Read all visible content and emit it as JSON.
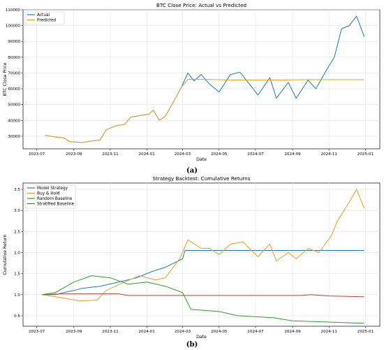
{
  "chart_data": [
    {
      "type": "line",
      "panel_label": "(a)",
      "title": "BTC Close Price: Actual vs Predicted",
      "xlabel": "Date",
      "ylabel": "BTC Close Price",
      "x_ticks": [
        "2023-07",
        "2023-09",
        "2023-11",
        "2024-01",
        "2024-03",
        "2024-05",
        "2024-07",
        "2024-09",
        "2024-11",
        "2025-01"
      ],
      "y_ticks": [
        30000,
        40000,
        50000,
        60000,
        70000,
        80000,
        90000,
        100000,
        110000
      ],
      "ylim": [
        22000,
        110000
      ],
      "xlim": [
        "2023-06-08",
        "2025-01-25"
      ],
      "grid": true,
      "legend": "top-left",
      "series": [
        {
          "name": "Actual",
          "color": "#1f77b4",
          "points": [
            [
              "2023-07-15",
              30500
            ],
            [
              "2023-08-01",
              29500
            ],
            [
              "2023-08-15",
              29000
            ],
            [
              "2023-08-25",
              26500
            ],
            [
              "2023-09-15",
              26000
            ],
            [
              "2023-10-01",
              27000
            ],
            [
              "2023-10-15",
              27500
            ],
            [
              "2023-10-25",
              34000
            ],
            [
              "2023-11-10",
              36500
            ],
            [
              "2023-11-25",
              37500
            ],
            [
              "2023-12-05",
              42000
            ],
            [
              "2023-12-20",
              43000
            ],
            [
              "2024-01-05",
              44000
            ],
            [
              "2024-01-12",
              46500
            ],
            [
              "2024-01-22",
              40000
            ],
            [
              "2024-02-01",
              42500
            ],
            [
              "2024-02-15",
              52000
            ],
            [
              "2024-02-28",
              61000
            ],
            [
              "2024-03-10",
              70000
            ],
            [
              "2024-03-20",
              65000
            ],
            [
              "2024-04-01",
              69000
            ],
            [
              "2024-04-15",
              63000
            ],
            [
              "2024-05-01",
              58000
            ],
            [
              "2024-05-20",
              69000
            ],
            [
              "2024-06-05",
              70500
            ],
            [
              "2024-06-25",
              61000
            ],
            [
              "2024-07-05",
              56000
            ],
            [
              "2024-07-25",
              67000
            ],
            [
              "2024-08-05",
              54000
            ],
            [
              "2024-08-25",
              64000
            ],
            [
              "2024-09-07",
              54000
            ],
            [
              "2024-09-27",
              65500
            ],
            [
              "2024-10-10",
              60000
            ],
            [
              "2024-10-28",
              72000
            ],
            [
              "2024-11-10",
              80000
            ],
            [
              "2024-11-22",
              98000
            ],
            [
              "2024-12-05",
              100000
            ],
            [
              "2024-12-17",
              106000
            ],
            [
              "2024-12-30",
              93000
            ]
          ]
        },
        {
          "name": "Predicted",
          "color": "#e6a020",
          "points": [
            [
              "2023-07-15",
              30500
            ],
            [
              "2023-08-01",
              29500
            ],
            [
              "2023-08-15",
              29000
            ],
            [
              "2023-08-25",
              26500
            ],
            [
              "2023-09-15",
              26000
            ],
            [
              "2023-10-01",
              27000
            ],
            [
              "2023-10-15",
              27500
            ],
            [
              "2023-10-25",
              34000
            ],
            [
              "2023-11-10",
              36500
            ],
            [
              "2023-11-25",
              37500
            ],
            [
              "2023-12-05",
              42000
            ],
            [
              "2023-12-20",
              43000
            ],
            [
              "2024-01-05",
              44000
            ],
            [
              "2024-01-12",
              46500
            ],
            [
              "2024-01-22",
              40000
            ],
            [
              "2024-02-01",
              42500
            ],
            [
              "2024-02-15",
              52000
            ],
            [
              "2024-02-28",
              61000
            ],
            [
              "2024-03-10",
              66000
            ],
            [
              "2024-04-01",
              66000
            ],
            [
              "2024-06-01",
              65500
            ],
            [
              "2024-08-01",
              65500
            ],
            [
              "2024-10-01",
              65800
            ],
            [
              "2024-12-30",
              65800
            ]
          ]
        }
      ]
    },
    {
      "type": "line",
      "panel_label": "(b)",
      "title": "Strategy Backtest: Cumulative Returns",
      "xlabel": "Date",
      "ylabel": "Cumulative Return",
      "x_ticks": [
        "2023-07",
        "2023-09",
        "2023-11",
        "2024-01",
        "2024-03",
        "2024-05",
        "2024-07",
        "2024-09",
        "2024-11",
        "2025-01"
      ],
      "y_ticks": [
        0.5,
        1.0,
        1.5,
        2.0,
        2.5,
        3.0,
        3.5
      ],
      "ylim": [
        0.25,
        3.65
      ],
      "xlim": [
        "2023-06-08",
        "2025-01-25"
      ],
      "grid": true,
      "legend": "top-left",
      "series": [
        {
          "name": "Model Strategy",
          "color": "#1f77b4",
          "points": [
            [
              "2023-07-10",
              1.0
            ],
            [
              "2023-08-01",
              1.0
            ],
            [
              "2023-08-15",
              1.05
            ],
            [
              "2023-09-01",
              1.1
            ],
            [
              "2023-09-15",
              1.15
            ],
            [
              "2023-10-15",
              1.2
            ],
            [
              "2023-11-15",
              1.3
            ],
            [
              "2023-12-15",
              1.4
            ],
            [
              "2024-01-10",
              1.55
            ],
            [
              "2024-02-01",
              1.65
            ],
            [
              "2024-03-01",
              1.85
            ],
            [
              "2024-03-05",
              2.05
            ],
            [
              "2024-12-30",
              2.05
            ]
          ]
        },
        {
          "name": "Buy & Hold",
          "color": "#e6a020",
          "points": [
            [
              "2023-07-10",
              1.0
            ],
            [
              "2023-08-15",
              0.92
            ],
            [
              "2023-09-10",
              0.85
            ],
            [
              "2023-10-10",
              0.87
            ],
            [
              "2023-10-25",
              1.1
            ],
            [
              "2023-11-25",
              1.3
            ],
            [
              "2023-12-20",
              1.45
            ],
            [
              "2024-01-15",
              1.35
            ],
            [
              "2024-02-01",
              1.4
            ],
            [
              "2024-02-25",
              1.85
            ],
            [
              "2024-03-10",
              2.3
            ],
            [
              "2024-04-01",
              2.1
            ],
            [
              "2024-04-15",
              2.1
            ],
            [
              "2024-05-01",
              1.95
            ],
            [
              "2024-05-20",
              2.2
            ],
            [
              "2024-06-10",
              2.25
            ],
            [
              "2024-07-05",
              1.9
            ],
            [
              "2024-07-25",
              2.2
            ],
            [
              "2024-08-05",
              1.8
            ],
            [
              "2024-08-25",
              2.0
            ],
            [
              "2024-09-07",
              1.85
            ],
            [
              "2024-09-27",
              2.1
            ],
            [
              "2024-10-15",
              2.0
            ],
            [
              "2024-11-05",
              2.4
            ],
            [
              "2024-11-15",
              2.75
            ],
            [
              "2024-12-05",
              3.2
            ],
            [
              "2024-12-17",
              3.5
            ],
            [
              "2024-12-30",
              3.05
            ]
          ]
        },
        {
          "name": "Random Baseline",
          "color": "#2ca02c",
          "points": [
            [
              "2023-07-10",
              1.0
            ],
            [
              "2023-08-01",
              1.05
            ],
            [
              "2023-09-01",
              1.3
            ],
            [
              "2023-10-01",
              1.45
            ],
            [
              "2023-11-01",
              1.4
            ],
            [
              "2023-12-01",
              1.25
            ],
            [
              "2024-01-01",
              1.3
            ],
            [
              "2024-02-01",
              1.2
            ],
            [
              "2024-03-01",
              1.05
            ],
            [
              "2024-03-15",
              0.65
            ],
            [
              "2024-05-01",
              0.6
            ],
            [
              "2024-06-01",
              0.5
            ],
            [
              "2024-08-01",
              0.45
            ],
            [
              "2024-09-01",
              0.38
            ],
            [
              "2024-11-01",
              0.35
            ],
            [
              "2024-12-30",
              0.32
            ]
          ]
        },
        {
          "name": "Stratified Baseline",
          "color": "#b5453b",
          "points": [
            [
              "2023-07-10",
              1.0
            ],
            [
              "2023-08-10",
              1.02
            ],
            [
              "2023-09-15",
              1.02
            ],
            [
              "2023-11-15",
              1.02
            ],
            [
              "2023-12-01",
              0.98
            ],
            [
              "2024-04-01",
              0.98
            ],
            [
              "2024-08-01",
              0.98
            ],
            [
              "2024-09-15",
              0.98
            ],
            [
              "2024-10-01",
              1.0
            ],
            [
              "2024-11-01",
              0.97
            ],
            [
              "2024-12-30",
              0.95
            ]
          ]
        }
      ]
    }
  ]
}
